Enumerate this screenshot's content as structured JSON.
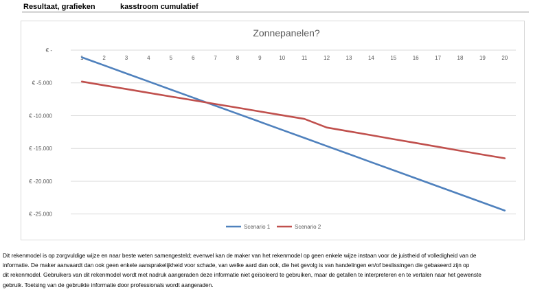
{
  "header": {
    "title_left": "Resultaat, grafieken",
    "title_right": "kasstroom cumulatief"
  },
  "chart_data": {
    "type": "line",
    "title": "Zonnepanelen?",
    "x": [
      1,
      2,
      3,
      4,
      5,
      6,
      7,
      8,
      9,
      10,
      11,
      12,
      13,
      14,
      15,
      16,
      17,
      18,
      19,
      20
    ],
    "x_tick_labels": [
      "1",
      "2",
      "3",
      "4",
      "5",
      "6",
      "7",
      "8",
      "9",
      "10",
      "11",
      "12",
      "13",
      "14",
      "15",
      "16",
      "17",
      "18",
      "19",
      "20"
    ],
    "y_tick_values": [
      0,
      -5000,
      -10000,
      -15000,
      -20000,
      -25000
    ],
    "y_tick_labels": [
      "€ -",
      "€ -5.000",
      "€ -10.000",
      "€ -15.000",
      "€ -20.000",
      "€ -25.000"
    ],
    "ylim": [
      -26500,
      0
    ],
    "grid": true,
    "legend_position": "bottom",
    "series": [
      {
        "name": "Scenario 1",
        "color": "#4f81bd",
        "values": [
          -1100,
          -2330,
          -3560,
          -4790,
          -6020,
          -7250,
          -8480,
          -9710,
          -10940,
          -12170,
          -13400,
          -14630,
          -15860,
          -17090,
          -18320,
          -19550,
          -20780,
          -22010,
          -23240,
          -24470
        ]
      },
      {
        "name": "Scenario 2",
        "color": "#c0504d",
        "values": [
          -4800,
          -5370,
          -5940,
          -6510,
          -7080,
          -7650,
          -8220,
          -8790,
          -9360,
          -9930,
          -10500,
          -11800,
          -12390,
          -12980,
          -13570,
          -14160,
          -14750,
          -15340,
          -15930,
          -16500
        ]
      }
    ]
  },
  "disclaimer": {
    "line1": "Dit rekenmodel is op zorgvuldige wijze en naar beste weten samengesteld; evenwel kan de maker van het rekenmodel op geen enkele wijze instaan voor de juistheid of volledigheid van de",
    "line2": "informatie. De maker aanvaardt dan ook geen enkele aansprakelijkheid voor schade, van welke aard dan ook, die het gevolg is van handelingen en/of beslissingen die gebaseerd zijn op",
    "line3": "dit rekenmodel. Gebruikers van dit rekenmodel wordt met nadruk aangeraden deze informatie niet geïsoleerd te gebruiken, maar de getallen te interpreteren en te vertalen naar het gewenste",
    "line4": "gebruik. Toetsing van de gebruikte informatie door professionals wordt aangeraden."
  }
}
